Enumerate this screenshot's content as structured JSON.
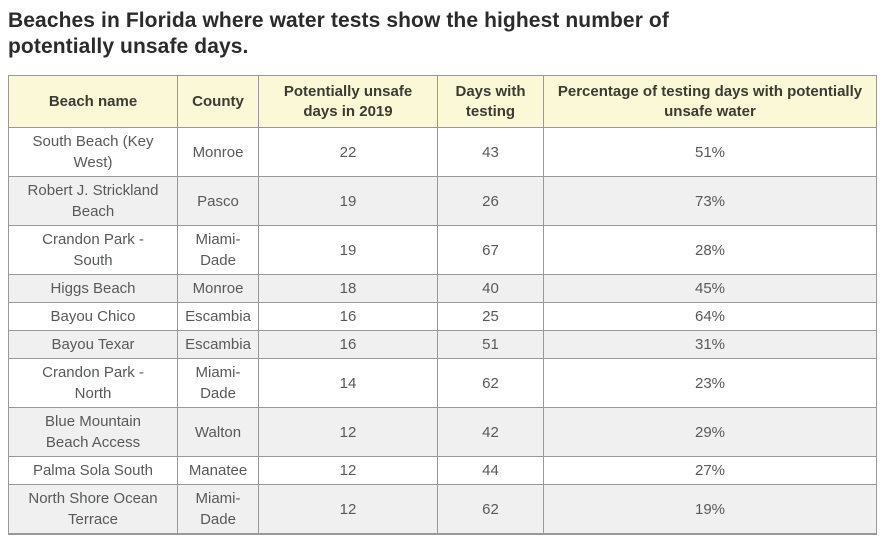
{
  "title": "Beaches in Florida where water tests show the highest number of\npotentially unsafe days.",
  "colors": {
    "title_text": "#2b2b2b",
    "header_bg": "#faf8d7",
    "header_text": "#3b3b32",
    "cell_text": "#58595b",
    "stripe_bg": "#f0f0f0",
    "border": "#999999"
  },
  "table": {
    "columns": [
      "Beach name",
      "County",
      "Potentially unsafe days in 2019",
      "Days with testing",
      "Percentage of testing days with potentially unsafe water"
    ],
    "rows": [
      [
        "South Beach (Key West)",
        "Monroe",
        "22",
        "43",
        "51%"
      ],
      [
        "Robert J. Strickland Beach",
        "Pasco",
        "19",
        "26",
        "73%"
      ],
      [
        "Crandon Park - South",
        "Miami-Dade",
        "19",
        "67",
        "28%"
      ],
      [
        "Higgs Beach",
        "Monroe",
        "18",
        "40",
        "45%"
      ],
      [
        "Bayou Chico",
        "Escambia",
        "16",
        "25",
        "64%"
      ],
      [
        "Bayou Texar",
        "Escambia",
        "16",
        "51",
        "31%"
      ],
      [
        "Crandon Park - North",
        "Miami-Dade",
        "14",
        "62",
        "23%"
      ],
      [
        "Blue Mountain Beach Access",
        "Walton",
        "12",
        "42",
        "29%"
      ],
      [
        "Palma Sola South",
        "Manatee",
        "12",
        "44",
        "27%"
      ],
      [
        "North Shore Ocean Terrace",
        "Miami-Dade",
        "12",
        "62",
        "19%"
      ]
    ]
  },
  "chart_data": {
    "type": "table",
    "title": "Beaches in Florida where water tests show the highest number of potentially unsafe days.",
    "columns": [
      "Beach name",
      "County",
      "Potentially unsafe days in 2019",
      "Days with testing",
      "Percentage of testing days with potentially unsafe water"
    ],
    "rows": [
      [
        "South Beach (Key West)",
        "Monroe",
        22,
        43,
        "51%"
      ],
      [
        "Robert J. Strickland Beach",
        "Pasco",
        19,
        26,
        "73%"
      ],
      [
        "Crandon Park - South",
        "Miami-Dade",
        19,
        67,
        "28%"
      ],
      [
        "Higgs Beach",
        "Monroe",
        18,
        40,
        "45%"
      ],
      [
        "Bayou Chico",
        "Escambia",
        16,
        25,
        "64%"
      ],
      [
        "Bayou Texar",
        "Escambia",
        16,
        51,
        "31%"
      ],
      [
        "Crandon Park - North",
        "Miami-Dade",
        14,
        62,
        "23%"
      ],
      [
        "Blue Mountain Beach Access",
        "Walton",
        12,
        42,
        "29%"
      ],
      [
        "Palma Sola South",
        "Manatee",
        12,
        44,
        "27%"
      ],
      [
        "North Shore Ocean Terrace",
        "Miami-Dade",
        12,
        62,
        "19%"
      ]
    ]
  }
}
